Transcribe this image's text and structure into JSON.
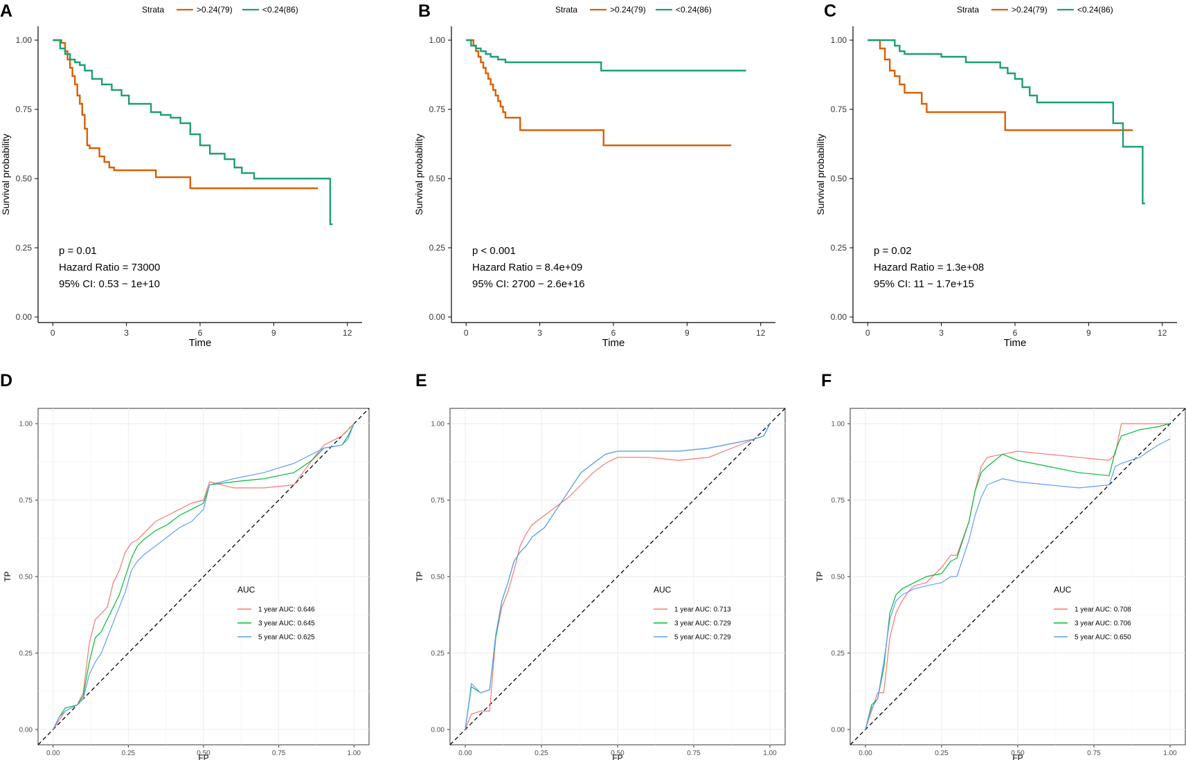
{
  "figure": {
    "colors": {
      "km_high": "#D95F02",
      "km_low": "#1B9E77",
      "roc_1y": "#F8766D",
      "roc_3y": "#00BA38",
      "roc_5y": "#619CFF",
      "grid": "#EBEBEB",
      "axis": "#333333",
      "diagonal": "#000000"
    }
  },
  "chart_data": [
    {
      "panel": "A",
      "type": "line",
      "subtype": "kaplan-meier",
      "legend_title": "Strata",
      "xlabel": "Time",
      "ylabel": "Survival probability",
      "xlim": [
        -0.6,
        12.6
      ],
      "ylim": [
        -0.02,
        1.05
      ],
      "xticks": [
        0,
        3,
        6,
        9,
        12
      ],
      "yticks": [
        0.0,
        0.25,
        0.5,
        0.75,
        1.0
      ],
      "ytick_labels": [
        "0.00",
        "0.25",
        "0.50",
        "0.75",
        "1.00"
      ],
      "annotations": [
        "p = 0.01",
        "Hazard Ratio = 73000",
        "95% CI: 0.53 − 1e+10"
      ],
      "series": [
        {
          "name": ">0.24(79)",
          "color_key": "km_high",
          "x": [
            0,
            0.35,
            0.5,
            0.6,
            0.7,
            0.8,
            0.9,
            1.0,
            1.1,
            1.2,
            1.3,
            1.4,
            1.5,
            1.7,
            1.9,
            2.1,
            2.3,
            2.5,
            4.2,
            5.6,
            10.8
          ],
          "y": [
            1.0,
            0.99,
            0.96,
            0.93,
            0.9,
            0.87,
            0.84,
            0.8,
            0.77,
            0.73,
            0.68,
            0.62,
            0.61,
            0.61,
            0.58,
            0.56,
            0.54,
            0.53,
            0.505,
            0.465,
            0.465
          ]
        },
        {
          "name": "<0.24(86)",
          "color_key": "km_low",
          "x": [
            0,
            0.3,
            0.5,
            0.7,
            0.9,
            1.1,
            1.3,
            1.6,
            2.0,
            2.4,
            2.8,
            3.1,
            3.5,
            4.0,
            4.4,
            4.8,
            5.2,
            5.6,
            6.0,
            6.4,
            6.7,
            7.0,
            7.4,
            7.7,
            8.2,
            11.3,
            11.4
          ],
          "y": [
            1.0,
            0.97,
            0.95,
            0.93,
            0.92,
            0.91,
            0.89,
            0.86,
            0.84,
            0.82,
            0.8,
            0.77,
            0.77,
            0.74,
            0.73,
            0.72,
            0.7,
            0.66,
            0.62,
            0.59,
            0.59,
            0.57,
            0.54,
            0.52,
            0.5,
            0.335,
            0.335
          ]
        }
      ]
    },
    {
      "panel": "B",
      "type": "line",
      "subtype": "kaplan-meier",
      "legend_title": "Strata",
      "xlabel": "Time",
      "ylabel": "Survival probability",
      "xlim": [
        -0.6,
        12.6
      ],
      "ylim": [
        -0.02,
        1.05
      ],
      "xticks": [
        0,
        3,
        6,
        9,
        12
      ],
      "yticks": [
        0.0,
        0.25,
        0.5,
        0.75,
        1.0
      ],
      "ytick_labels": [
        "0.00",
        "0.25",
        "0.50",
        "0.75",
        "1.00"
      ],
      "annotations": [
        "p < 0.001",
        "Hazard Ratio = 8.4e+09",
        "95% CI: 2700 − 2.6e+16"
      ],
      "series": [
        {
          "name": ">0.24(79)",
          "color_key": "km_high",
          "x": [
            0,
            0.3,
            0.4,
            0.5,
            0.6,
            0.7,
            0.8,
            0.9,
            1.0,
            1.1,
            1.2,
            1.3,
            1.4,
            1.5,
            1.6,
            2.2,
            5.6,
            10.8
          ],
          "y": [
            1.0,
            0.98,
            0.96,
            0.94,
            0.92,
            0.9,
            0.88,
            0.86,
            0.84,
            0.82,
            0.8,
            0.78,
            0.76,
            0.74,
            0.72,
            0.675,
            0.62,
            0.62
          ]
        },
        {
          "name": "<0.24(86)",
          "color_key": "km_low",
          "x": [
            0,
            0.2,
            0.4,
            0.6,
            0.8,
            1.0,
            1.3,
            1.6,
            5.5,
            11.4
          ],
          "y": [
            1.0,
            0.98,
            0.97,
            0.96,
            0.95,
            0.94,
            0.93,
            0.92,
            0.89,
            0.89
          ]
        }
      ]
    },
    {
      "panel": "C",
      "type": "line",
      "subtype": "kaplan-meier",
      "legend_title": "Strata",
      "xlabel": "Time",
      "ylabel": "Survival probability",
      "xlim": [
        -0.6,
        12.6
      ],
      "ylim": [
        -0.02,
        1.05
      ],
      "xticks": [
        0,
        3,
        6,
        9,
        12
      ],
      "yticks": [
        0.0,
        0.25,
        0.5,
        0.75,
        1.0
      ],
      "ytick_labels": [
        "0.00",
        "0.25",
        "0.50",
        "0.75",
        "1.00"
      ],
      "annotations": [
        "p = 0.02",
        "Hazard Ratio = 1.3e+08",
        "95% CI: 11 − 1.7e+15"
      ],
      "series": [
        {
          "name": ">0.24(79)",
          "color_key": "km_high",
          "x": [
            0,
            0.5,
            0.7,
            0.9,
            1.1,
            1.3,
            1.5,
            2.2,
            2.4,
            5.6,
            10.8
          ],
          "y": [
            1.0,
            0.97,
            0.93,
            0.89,
            0.87,
            0.84,
            0.81,
            0.77,
            0.74,
            0.675,
            0.675
          ]
        },
        {
          "name": "<0.24(86)",
          "color_key": "km_low",
          "x": [
            0,
            1.1,
            1.3,
            1.5,
            2.2,
            3.0,
            4.0,
            5.4,
            5.7,
            6.0,
            6.3,
            6.6,
            6.9,
            10.0,
            10.4,
            11.2,
            11.3
          ],
          "y": [
            1.0,
            0.98,
            0.96,
            0.95,
            0.95,
            0.94,
            0.92,
            0.9,
            0.88,
            0.86,
            0.83,
            0.8,
            0.775,
            0.7,
            0.615,
            0.41,
            0.41
          ]
        }
      ]
    },
    {
      "panel": "D",
      "type": "line",
      "subtype": "roc",
      "legend_title": "AUC",
      "xlabel": "FP",
      "ylabel": "TP",
      "xlim": [
        -0.05,
        1.05
      ],
      "ylim": [
        -0.05,
        1.05
      ],
      "xticks": [
        0.0,
        0.25,
        0.5,
        0.75,
        1.0
      ],
      "xtick_labels": [
        "0.00",
        "0.25",
        "0.50",
        "0.75",
        "1.00"
      ],
      "yticks": [
        0.0,
        0.25,
        0.5,
        0.75,
        1.0
      ],
      "ytick_labels": [
        "0.00",
        "0.25",
        "0.50",
        "0.75",
        "1.00"
      ],
      "series": [
        {
          "name": "1 year AUC: 0.646",
          "color_key": "roc_1y",
          "x": [
            0,
            0.02,
            0.04,
            0.08,
            0.1,
            0.12,
            0.14,
            0.16,
            0.18,
            0.2,
            0.22,
            0.24,
            0.26,
            0.28,
            0.3,
            0.34,
            0.38,
            0.42,
            0.46,
            0.5,
            0.52,
            0.6,
            0.7,
            0.8,
            0.86,
            0.9,
            0.96,
            0.98,
            1.0
          ],
          "y": [
            0,
            0.03,
            0.06,
            0.08,
            0.12,
            0.28,
            0.36,
            0.38,
            0.4,
            0.48,
            0.52,
            0.58,
            0.61,
            0.62,
            0.64,
            0.68,
            0.7,
            0.72,
            0.74,
            0.75,
            0.81,
            0.79,
            0.79,
            0.8,
            0.88,
            0.93,
            0.96,
            0.98,
            1.0
          ]
        },
        {
          "name": "3 year AUC: 0.645",
          "color_key": "roc_3y",
          "x": [
            0,
            0.02,
            0.04,
            0.08,
            0.1,
            0.12,
            0.14,
            0.16,
            0.18,
            0.2,
            0.22,
            0.24,
            0.26,
            0.28,
            0.3,
            0.34,
            0.38,
            0.42,
            0.46,
            0.5,
            0.52,
            0.6,
            0.7,
            0.8,
            0.86,
            0.9,
            0.96,
            0.98,
            1.0
          ],
          "y": [
            0,
            0.04,
            0.07,
            0.08,
            0.11,
            0.22,
            0.3,
            0.32,
            0.36,
            0.4,
            0.44,
            0.5,
            0.56,
            0.6,
            0.62,
            0.65,
            0.67,
            0.7,
            0.72,
            0.74,
            0.8,
            0.81,
            0.82,
            0.84,
            0.88,
            0.92,
            0.93,
            0.96,
            1.0
          ]
        },
        {
          "name": "5 year AUC: 0.625",
          "color_key": "roc_5y",
          "x": [
            0,
            0.02,
            0.04,
            0.08,
            0.1,
            0.12,
            0.14,
            0.16,
            0.18,
            0.2,
            0.22,
            0.24,
            0.26,
            0.28,
            0.3,
            0.34,
            0.38,
            0.42,
            0.46,
            0.5,
            0.52,
            0.6,
            0.7,
            0.8,
            0.86,
            0.9,
            0.96,
            0.98,
            1.0
          ],
          "y": [
            0,
            0.04,
            0.06,
            0.08,
            0.1,
            0.18,
            0.22,
            0.25,
            0.3,
            0.35,
            0.4,
            0.45,
            0.52,
            0.55,
            0.57,
            0.6,
            0.63,
            0.66,
            0.68,
            0.72,
            0.8,
            0.82,
            0.84,
            0.87,
            0.9,
            0.92,
            0.93,
            0.95,
            1.0
          ]
        }
      ]
    },
    {
      "panel": "E",
      "type": "line",
      "subtype": "roc",
      "legend_title": "AUC",
      "xlabel": "FP",
      "ylabel": "TP",
      "xlim": [
        -0.05,
        1.05
      ],
      "ylim": [
        -0.05,
        1.05
      ],
      "xticks": [
        0.0,
        0.25,
        0.5,
        0.75,
        1.0
      ],
      "xtick_labels": [
        "0.00",
        "0.25",
        "0.50",
        "0.75",
        "1.00"
      ],
      "yticks": [
        0.0,
        0.25,
        0.5,
        0.75,
        1.0
      ],
      "ytick_labels": [
        "0.00",
        "0.25",
        "0.50",
        "0.75",
        "1.00"
      ],
      "series": [
        {
          "name": "1 year AUC: 0.713",
          "color_key": "roc_1y",
          "x": [
            0,
            0.02,
            0.05,
            0.08,
            0.1,
            0.12,
            0.14,
            0.16,
            0.18,
            0.2,
            0.22,
            0.26,
            0.3,
            0.34,
            0.38,
            0.42,
            0.46,
            0.5,
            0.6,
            0.7,
            0.8,
            0.9,
            0.95,
            0.98,
            1.0
          ],
          "y": [
            0,
            0.05,
            0.06,
            0.06,
            0.3,
            0.4,
            0.45,
            0.52,
            0.6,
            0.64,
            0.67,
            0.7,
            0.73,
            0.76,
            0.8,
            0.84,
            0.87,
            0.89,
            0.89,
            0.88,
            0.89,
            0.93,
            0.95,
            0.96,
            1.0
          ]
        },
        {
          "name": "3 year AUC: 0.729",
          "color_key": "roc_3y",
          "x": [
            0,
            0.02,
            0.05,
            0.08,
            0.1,
            0.12,
            0.14,
            0.16,
            0.18,
            0.2,
            0.22,
            0.26,
            0.3,
            0.34,
            0.38,
            0.42,
            0.46,
            0.5,
            0.6,
            0.7,
            0.8,
            0.9,
            0.95,
            0.98,
            1.0
          ],
          "y": [
            0,
            0.14,
            0.12,
            0.13,
            0.3,
            0.42,
            0.48,
            0.55,
            0.58,
            0.6,
            0.63,
            0.66,
            0.72,
            0.78,
            0.84,
            0.87,
            0.9,
            0.91,
            0.91,
            0.91,
            0.92,
            0.94,
            0.95,
            0.96,
            1.0
          ]
        },
        {
          "name": "5 year AUC: 0.729",
          "color_key": "roc_5y",
          "x": [
            0,
            0.02,
            0.05,
            0.08,
            0.1,
            0.12,
            0.14,
            0.16,
            0.18,
            0.2,
            0.22,
            0.26,
            0.3,
            0.34,
            0.38,
            0.42,
            0.46,
            0.5,
            0.6,
            0.7,
            0.8,
            0.9,
            0.95,
            0.98,
            1.0
          ],
          "y": [
            0,
            0.15,
            0.12,
            0.13,
            0.31,
            0.42,
            0.48,
            0.55,
            0.58,
            0.6,
            0.63,
            0.66,
            0.72,
            0.78,
            0.84,
            0.87,
            0.9,
            0.91,
            0.91,
            0.91,
            0.92,
            0.94,
            0.95,
            0.96,
            1.0
          ]
        }
      ]
    },
    {
      "panel": "F",
      "type": "line",
      "subtype": "roc",
      "legend_title": "AUC",
      "xlabel": "FP",
      "ylabel": "TP",
      "xlim": [
        -0.05,
        1.05
      ],
      "ylim": [
        -0.05,
        1.05
      ],
      "xticks": [
        0.0,
        0.25,
        0.5,
        0.75,
        1.0
      ],
      "xtick_labels": [
        "0.00",
        "0.25",
        "0.50",
        "0.75",
        "1.00"
      ],
      "yticks": [
        0.0,
        0.25,
        0.5,
        0.75,
        1.0
      ],
      "ytick_labels": [
        "0.00",
        "0.25",
        "0.50",
        "0.75",
        "1.00"
      ],
      "series": [
        {
          "name": "1 year AUC: 0.708",
          "color_key": "roc_1y",
          "x": [
            0,
            0.02,
            0.04,
            0.06,
            0.08,
            0.1,
            0.12,
            0.14,
            0.16,
            0.2,
            0.25,
            0.28,
            0.3,
            0.34,
            0.36,
            0.38,
            0.4,
            0.45,
            0.5,
            0.6,
            0.7,
            0.8,
            0.82,
            0.84,
            0.9,
            0.96,
            1.0
          ],
          "y": [
            0,
            0.06,
            0.12,
            0.12,
            0.3,
            0.38,
            0.42,
            0.45,
            0.47,
            0.48,
            0.53,
            0.57,
            0.57,
            0.68,
            0.78,
            0.86,
            0.89,
            0.9,
            0.91,
            0.9,
            0.89,
            0.88,
            0.9,
            1.0,
            1.0,
            1.0,
            1.0
          ]
        },
        {
          "name": "3 year AUC: 0.706",
          "color_key": "roc_3y",
          "x": [
            0,
            0.02,
            0.04,
            0.06,
            0.08,
            0.1,
            0.12,
            0.14,
            0.16,
            0.2,
            0.25,
            0.28,
            0.3,
            0.34,
            0.36,
            0.38,
            0.4,
            0.45,
            0.5,
            0.6,
            0.7,
            0.8,
            0.82,
            0.84,
            0.9,
            0.96,
            1.0
          ],
          "y": [
            0,
            0.08,
            0.1,
            0.2,
            0.38,
            0.44,
            0.46,
            0.47,
            0.48,
            0.5,
            0.51,
            0.55,
            0.56,
            0.68,
            0.78,
            0.84,
            0.86,
            0.9,
            0.88,
            0.86,
            0.84,
            0.83,
            0.91,
            0.96,
            0.98,
            0.99,
            1.0
          ]
        },
        {
          "name": "5 year AUC: 0.650",
          "color_key": "roc_5y",
          "x": [
            0,
            0.02,
            0.04,
            0.06,
            0.08,
            0.1,
            0.12,
            0.14,
            0.16,
            0.2,
            0.25,
            0.28,
            0.3,
            0.34,
            0.36,
            0.38,
            0.4,
            0.45,
            0.5,
            0.6,
            0.7,
            0.8,
            0.82,
            0.84,
            0.9,
            0.96,
            1.0
          ],
          "y": [
            0,
            0.07,
            0.1,
            0.22,
            0.36,
            0.42,
            0.44,
            0.45,
            0.46,
            0.47,
            0.48,
            0.5,
            0.5,
            0.62,
            0.7,
            0.76,
            0.8,
            0.82,
            0.81,
            0.8,
            0.79,
            0.8,
            0.86,
            0.87,
            0.89,
            0.93,
            0.95
          ]
        }
      ]
    }
  ]
}
